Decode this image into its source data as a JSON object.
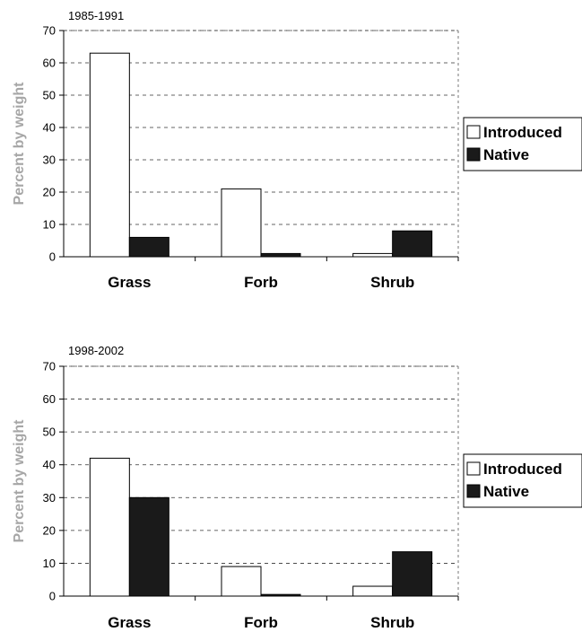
{
  "chart_data": [
    {
      "type": "bar",
      "title": "1985-1991",
      "ylabel": "Percent by weight",
      "xlabel": "",
      "ylim": [
        0,
        70
      ],
      "yticks": [
        0,
        10,
        20,
        30,
        40,
        50,
        60,
        70
      ],
      "grid": "horizontal dashed",
      "legend_position": "right",
      "categories": [
        "Grass",
        "Forb",
        "Shrub"
      ],
      "series": [
        {
          "name": "Introduced",
          "color": "#ffffff",
          "values": [
            63,
            21,
            1
          ]
        },
        {
          "name": "Native",
          "color": "#1a1a1a",
          "values": [
            6,
            1,
            8
          ]
        }
      ]
    },
    {
      "type": "bar",
      "title": "1998-2002",
      "ylabel": "Percent by weight",
      "xlabel": "",
      "ylim": [
        0,
        70
      ],
      "yticks": [
        0,
        10,
        20,
        30,
        40,
        50,
        60,
        70
      ],
      "grid": "horizontal dashed",
      "legend_position": "right",
      "categories": [
        "Grass",
        "Forb",
        "Shrub"
      ],
      "series": [
        {
          "name": "Introduced",
          "color": "#ffffff",
          "values": [
            42,
            9,
            3
          ]
        },
        {
          "name": "Native",
          "color": "#1a1a1a",
          "values": [
            30,
            0.5,
            13.5
          ]
        }
      ]
    }
  ]
}
